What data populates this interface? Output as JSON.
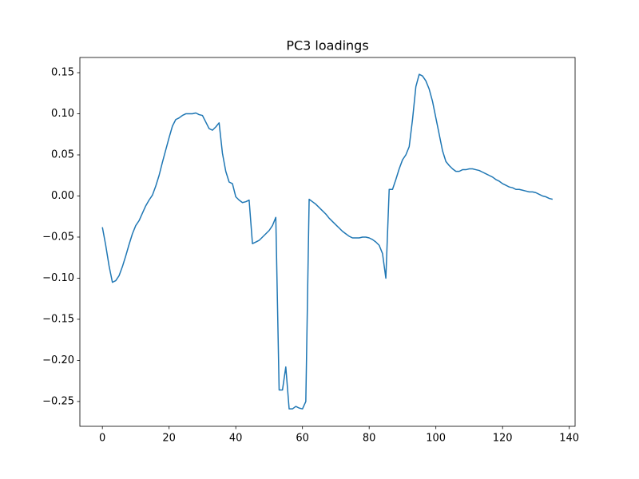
{
  "chart_data": {
    "type": "line",
    "title": "PC3 loadings",
    "x": [
      0,
      1,
      2,
      3,
      4,
      5,
      6,
      7,
      8,
      9,
      10,
      11,
      12,
      13,
      14,
      15,
      16,
      17,
      18,
      19,
      20,
      21,
      22,
      23,
      24,
      25,
      26,
      27,
      28,
      29,
      30,
      31,
      32,
      33,
      34,
      35,
      36,
      37,
      38,
      39,
      40,
      41,
      42,
      43,
      44,
      45,
      46,
      47,
      48,
      49,
      50,
      51,
      52,
      53,
      54,
      55,
      56,
      57,
      58,
      59,
      60,
      61,
      62,
      63,
      64,
      65,
      66,
      67,
      68,
      69,
      70,
      71,
      72,
      73,
      74,
      75,
      76,
      77,
      78,
      79,
      80,
      81,
      82,
      83,
      84,
      85,
      86,
      87,
      88,
      89,
      90,
      91,
      92,
      93,
      94,
      95,
      96,
      97,
      98,
      99,
      100,
      101,
      102,
      103,
      104,
      105,
      106,
      107,
      108,
      109,
      110,
      111,
      112,
      113,
      114,
      115,
      116,
      117,
      118,
      119,
      120,
      121,
      122,
      123,
      124,
      125,
      126,
      127,
      128,
      129,
      130,
      131,
      132,
      133,
      134,
      135
    ],
    "series": [
      {
        "color": "#1f77b4",
        "values": [
          -0.038,
          -0.06,
          -0.085,
          -0.105,
          -0.103,
          -0.097,
          -0.086,
          -0.073,
          -0.059,
          -0.046,
          -0.036,
          -0.03,
          -0.021,
          -0.012,
          -0.005,
          0.001,
          0.012,
          0.025,
          0.041,
          0.056,
          0.071,
          0.085,
          0.093,
          0.095,
          0.098,
          0.1,
          0.1,
          0.1,
          0.101,
          0.099,
          0.098,
          0.09,
          0.082,
          0.08,
          0.084,
          0.089,
          0.052,
          0.03,
          0.017,
          0.015,
          -0.001,
          -0.005,
          -0.008,
          -0.007,
          -0.005,
          -0.058,
          -0.056,
          -0.054,
          -0.05,
          -0.046,
          -0.042,
          -0.036,
          -0.026,
          -0.236,
          -0.236,
          -0.208,
          -0.259,
          -0.259,
          -0.256,
          -0.258,
          -0.259,
          -0.25,
          -0.004,
          -0.007,
          -0.01,
          -0.014,
          -0.018,
          -0.022,
          -0.027,
          -0.031,
          -0.035,
          -0.039,
          -0.043,
          -0.046,
          -0.049,
          -0.051,
          -0.051,
          -0.051,
          -0.05,
          -0.05,
          -0.051,
          -0.053,
          -0.056,
          -0.06,
          -0.07,
          -0.1,
          0.008,
          0.008,
          0.02,
          0.033,
          0.044,
          0.05,
          0.06,
          0.093,
          0.133,
          0.148,
          0.146,
          0.14,
          0.13,
          0.115,
          0.095,
          0.075,
          0.055,
          0.042,
          0.037,
          0.033,
          0.03,
          0.03,
          0.032,
          0.032,
          0.033,
          0.033,
          0.032,
          0.031,
          0.029,
          0.027,
          0.025,
          0.023,
          0.02,
          0.018,
          0.015,
          0.013,
          0.011,
          0.01,
          0.008,
          0.008,
          0.007,
          0.006,
          0.005,
          0.005,
          0.004,
          0.002,
          0.0,
          -0.001,
          -0.003,
          -0.004
        ]
      }
    ],
    "xlim": [
      -6.75,
      141.75
    ],
    "ylim": [
      -0.2802,
      0.1685
    ],
    "xticks": [
      0,
      20,
      40,
      60,
      80,
      100,
      120,
      140
    ],
    "yticks": [
      {
        "value": -0.25,
        "label": "−0.25"
      },
      {
        "value": -0.2,
        "label": "−0.20"
      },
      {
        "value": -0.15,
        "label": "−0.15"
      },
      {
        "value": -0.1,
        "label": "−0.10"
      },
      {
        "value": -0.05,
        "label": "−0.05"
      },
      {
        "value": 0,
        "label": "0.00"
      },
      {
        "value": 0.05,
        "label": "0.05"
      },
      {
        "value": 0.1,
        "label": "0.10"
      },
      {
        "value": 0.15,
        "label": "0.15"
      }
    ],
    "grid": false
  }
}
